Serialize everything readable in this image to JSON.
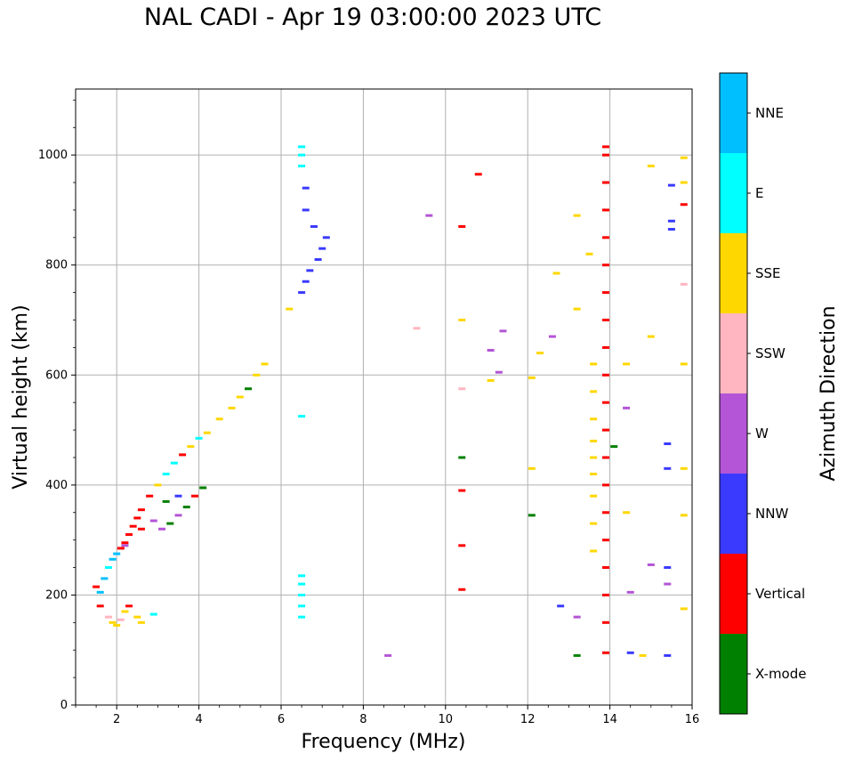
{
  "title": "NAL CADI - Apr 19 03:00:00 2023 UTC",
  "chart_data": {
    "type": "scatter",
    "title": "NAL CADI - Apr 19 03:00:00 2023 UTC",
    "xlabel": "Frequency (MHz)",
    "ylabel": "Virtual height (km)",
    "xlim": [
      1,
      16
    ],
    "ylim": [
      0,
      1120
    ],
    "xticks": [
      2,
      4,
      6,
      8,
      10,
      12,
      14,
      16
    ],
    "yticks": [
      0,
      200,
      400,
      600,
      800,
      1000
    ],
    "xtick_labels": [
      "2",
      "4",
      "6",
      "8",
      "10",
      "12",
      "14",
      "16"
    ],
    "ytick_labels": [
      "0",
      "200",
      "400",
      "600",
      "800",
      "1000"
    ],
    "grid": true,
    "colorbar": {
      "label": "Azimuth Direction",
      "categories": [
        "X-mode",
        "Vertical",
        "NNW",
        "W",
        "SSW",
        "SSE",
        "E",
        "NNE"
      ],
      "colors": [
        "#008000",
        "#ff0000",
        "#3a3aff",
        "#b355d6",
        "#ffb6c1",
        "#ffd700",
        "#00ffff",
        "#00bfff"
      ]
    },
    "series": [
      {
        "name": "Low-frequency trace",
        "points": [
          [
            1.5,
            215,
            1
          ],
          [
            1.6,
            205,
            7
          ],
          [
            1.7,
            230,
            7
          ],
          [
            1.8,
            250,
            6
          ],
          [
            1.9,
            265,
            7
          ],
          [
            2.0,
            275,
            7
          ],
          [
            2.1,
            285,
            1
          ],
          [
            2.2,
            295,
            1
          ],
          [
            2.3,
            310,
            1
          ],
          [
            2.4,
            325,
            1
          ],
          [
            2.5,
            340,
            1
          ],
          [
            2.6,
            355,
            1
          ],
          [
            2.8,
            380,
            1
          ],
          [
            3.0,
            400,
            5
          ],
          [
            3.2,
            420,
            6
          ],
          [
            3.4,
            440,
            6
          ],
          [
            3.6,
            455,
            1
          ],
          [
            3.8,
            470,
            5
          ],
          [
            4.0,
            485,
            6
          ],
          [
            4.2,
            495,
            5
          ],
          [
            4.5,
            520,
            5
          ],
          [
            4.8,
            540,
            5
          ],
          [
            5.0,
            560,
            5
          ],
          [
            5.2,
            575,
            0
          ],
          [
            5.4,
            600,
            5
          ],
          [
            5.6,
            620,
            5
          ],
          [
            1.6,
            180,
            1
          ],
          [
            1.8,
            160,
            4
          ],
          [
            1.9,
            150,
            5
          ],
          [
            2.0,
            145,
            5
          ],
          [
            2.1,
            155,
            4
          ],
          [
            2.2,
            170,
            5
          ],
          [
            2.3,
            180,
            1
          ],
          [
            2.5,
            160,
            5
          ],
          [
            2.6,
            150,
            5
          ],
          [
            2.9,
            165,
            6
          ],
          [
            2.2,
            290,
            3
          ],
          [
            2.6,
            320,
            1
          ],
          [
            2.9,
            335,
            3
          ],
          [
            3.1,
            320,
            3
          ],
          [
            3.3,
            330,
            0
          ],
          [
            3.5,
            345,
            3
          ],
          [
            3.7,
            360,
            0
          ],
          [
            3.9,
            380,
            1
          ],
          [
            4.1,
            395,
            0
          ],
          [
            3.2,
            370,
            0
          ],
          [
            3.5,
            380,
            2
          ]
        ]
      },
      {
        "name": "Upper trace",
        "points": [
          [
            6.2,
            720,
            5
          ],
          [
            6.5,
            750,
            2
          ],
          [
            6.6,
            770,
            2
          ],
          [
            6.7,
            790,
            2
          ],
          [
            6.9,
            810,
            2
          ],
          [
            7.0,
            830,
            2
          ],
          [
            7.1,
            850,
            2
          ],
          [
            6.8,
            870,
            2
          ],
          [
            6.6,
            900,
            2
          ],
          [
            6.6,
            940,
            2
          ],
          [
            6.5,
            980,
            6
          ],
          [
            6.5,
            1000,
            6
          ],
          [
            6.5,
            1015,
            6
          ]
        ]
      },
      {
        "name": "Isolated returns",
        "points": [
          [
            6.5,
            160,
            6
          ],
          [
            6.5,
            180,
            6
          ],
          [
            6.5,
            200,
            6
          ],
          [
            6.5,
            220,
            6
          ],
          [
            6.5,
            235,
            6
          ],
          [
            6.5,
            525,
            6
          ],
          [
            8.6,
            90,
            3
          ],
          [
            9.3,
            685,
            4
          ],
          [
            9.6,
            890,
            3
          ],
          [
            10.4,
            210,
            1
          ],
          [
            10.4,
            290,
            1
          ],
          [
            10.4,
            390,
            1
          ],
          [
            10.4,
            450,
            0
          ],
          [
            10.4,
            575,
            4
          ],
          [
            10.4,
            700,
            5
          ],
          [
            10.4,
            870,
            1
          ],
          [
            10.8,
            965,
            1
          ],
          [
            11.1,
            590,
            5
          ],
          [
            11.1,
            645,
            3
          ],
          [
            11.3,
            605,
            3
          ],
          [
            11.4,
            680,
            3
          ],
          [
            12.1,
            345,
            0
          ],
          [
            12.1,
            430,
            5
          ],
          [
            12.1,
            595,
            5
          ],
          [
            12.3,
            640,
            5
          ],
          [
            12.6,
            670,
            3
          ],
          [
            12.7,
            785,
            5
          ],
          [
            12.8,
            180,
            2
          ],
          [
            13.2,
            160,
            3
          ],
          [
            13.2,
            90,
            0
          ],
          [
            13.2,
            720,
            5
          ],
          [
            13.2,
            890,
            5
          ],
          [
            13.5,
            820,
            5
          ],
          [
            14.1,
            470,
            0
          ],
          [
            14.4,
            620,
            5
          ],
          [
            14.4,
            540,
            3
          ],
          [
            14.4,
            350,
            5
          ],
          [
            14.5,
            205,
            3
          ],
          [
            14.5,
            95,
            2
          ],
          [
            14.8,
            90,
            5
          ],
          [
            15.0,
            980,
            5
          ],
          [
            15.0,
            670,
            5
          ],
          [
            15.0,
            255,
            3
          ],
          [
            15.4,
            475,
            2
          ],
          [
            15.4,
            430,
            2
          ],
          [
            15.4,
            250,
            2
          ],
          [
            15.4,
            220,
            3
          ],
          [
            15.4,
            90,
            2
          ],
          [
            15.5,
            945,
            2
          ],
          [
            15.5,
            880,
            2
          ],
          [
            15.5,
            865,
            2
          ],
          [
            15.8,
            995,
            5
          ],
          [
            15.8,
            950,
            5
          ],
          [
            15.8,
            910,
            1
          ],
          [
            15.8,
            765,
            4
          ],
          [
            15.8,
            620,
            5
          ],
          [
            15.8,
            430,
            5
          ],
          [
            15.8,
            345,
            5
          ],
          [
            15.8,
            175,
            5
          ]
        ]
      },
      {
        "name": "14 MHz column",
        "points": [
          [
            13.9,
            95,
            1
          ],
          [
            13.9,
            150,
            1
          ],
          [
            13.9,
            200,
            1
          ],
          [
            13.9,
            250,
            1
          ],
          [
            13.9,
            300,
            1
          ],
          [
            13.9,
            350,
            1
          ],
          [
            13.9,
            400,
            1
          ],
          [
            13.9,
            450,
            1
          ],
          [
            13.9,
            500,
            1
          ],
          [
            13.9,
            550,
            1
          ],
          [
            13.9,
            600,
            1
          ],
          [
            13.9,
            650,
            1
          ],
          [
            13.9,
            700,
            1
          ],
          [
            13.9,
            750,
            1
          ],
          [
            13.9,
            800,
            1
          ],
          [
            13.9,
            850,
            1
          ],
          [
            13.9,
            900,
            1
          ],
          [
            13.9,
            950,
            1
          ],
          [
            13.9,
            1000,
            1
          ],
          [
            13.9,
            1015,
            1
          ],
          [
            13.6,
            280,
            5
          ],
          [
            13.6,
            330,
            5
          ],
          [
            13.6,
            380,
            5
          ],
          [
            13.6,
            420,
            5
          ],
          [
            13.6,
            450,
            5
          ],
          [
            13.6,
            480,
            5
          ],
          [
            13.6,
            520,
            5
          ],
          [
            13.6,
            570,
            5
          ],
          [
            13.6,
            620,
            5
          ]
        ]
      }
    ]
  }
}
